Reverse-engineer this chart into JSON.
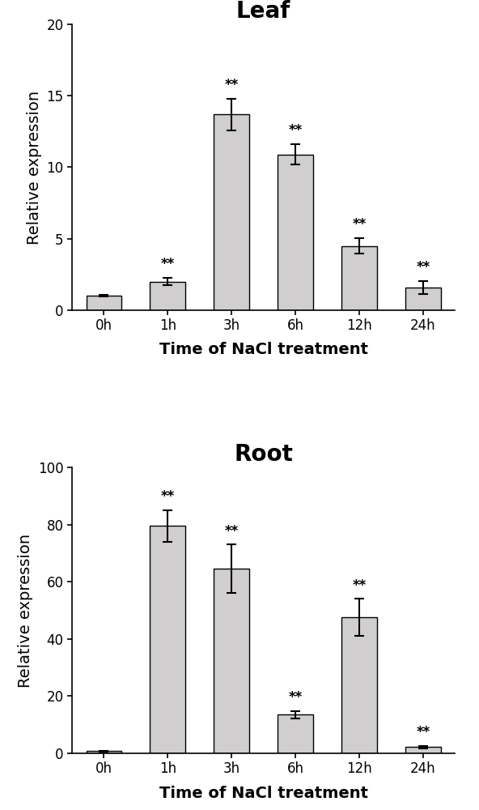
{
  "leaf": {
    "title": "Leaf",
    "categories": [
      "0h",
      "1h",
      "3h",
      "6h",
      "12h",
      "24h"
    ],
    "values": [
      1.0,
      2.0,
      13.7,
      10.9,
      4.5,
      1.6
    ],
    "errors": [
      0.05,
      0.25,
      1.1,
      0.7,
      0.55,
      0.45
    ],
    "sig_labels": [
      "",
      "**",
      "**",
      "**",
      "**",
      "**"
    ],
    "ylim": [
      0,
      20
    ],
    "yticks": [
      0,
      5,
      10,
      15,
      20
    ],
    "ylabel": "Relative expression",
    "xlabel": "Time of NaCl treatment"
  },
  "root": {
    "title": "Root",
    "categories": [
      "0h",
      "1h",
      "3h",
      "6h",
      "12h",
      "24h"
    ],
    "values": [
      0.8,
      79.5,
      64.5,
      13.5,
      47.5,
      2.2
    ],
    "errors": [
      0.1,
      5.5,
      8.5,
      1.2,
      6.5,
      0.4
    ],
    "sig_labels": [
      "",
      "**",
      "**",
      "**",
      "**",
      "**"
    ],
    "ylim": [
      0,
      100
    ],
    "yticks": [
      0,
      20,
      40,
      60,
      80,
      100
    ],
    "ylabel": "Relative expression",
    "xlabel": "Time of NaCl treatment"
  },
  "bar_color": "#d0cece",
  "bar_edgecolor": "#000000",
  "bar_width": 0.55,
  "errorbar_color": "#000000",
  "errorbar_capsize": 4,
  "errorbar_linewidth": 1.5,
  "sig_fontsize": 12,
  "title_fontsize": 20,
  "axis_label_fontsize": 14,
  "tick_fontsize": 12,
  "background_color": "#ffffff"
}
